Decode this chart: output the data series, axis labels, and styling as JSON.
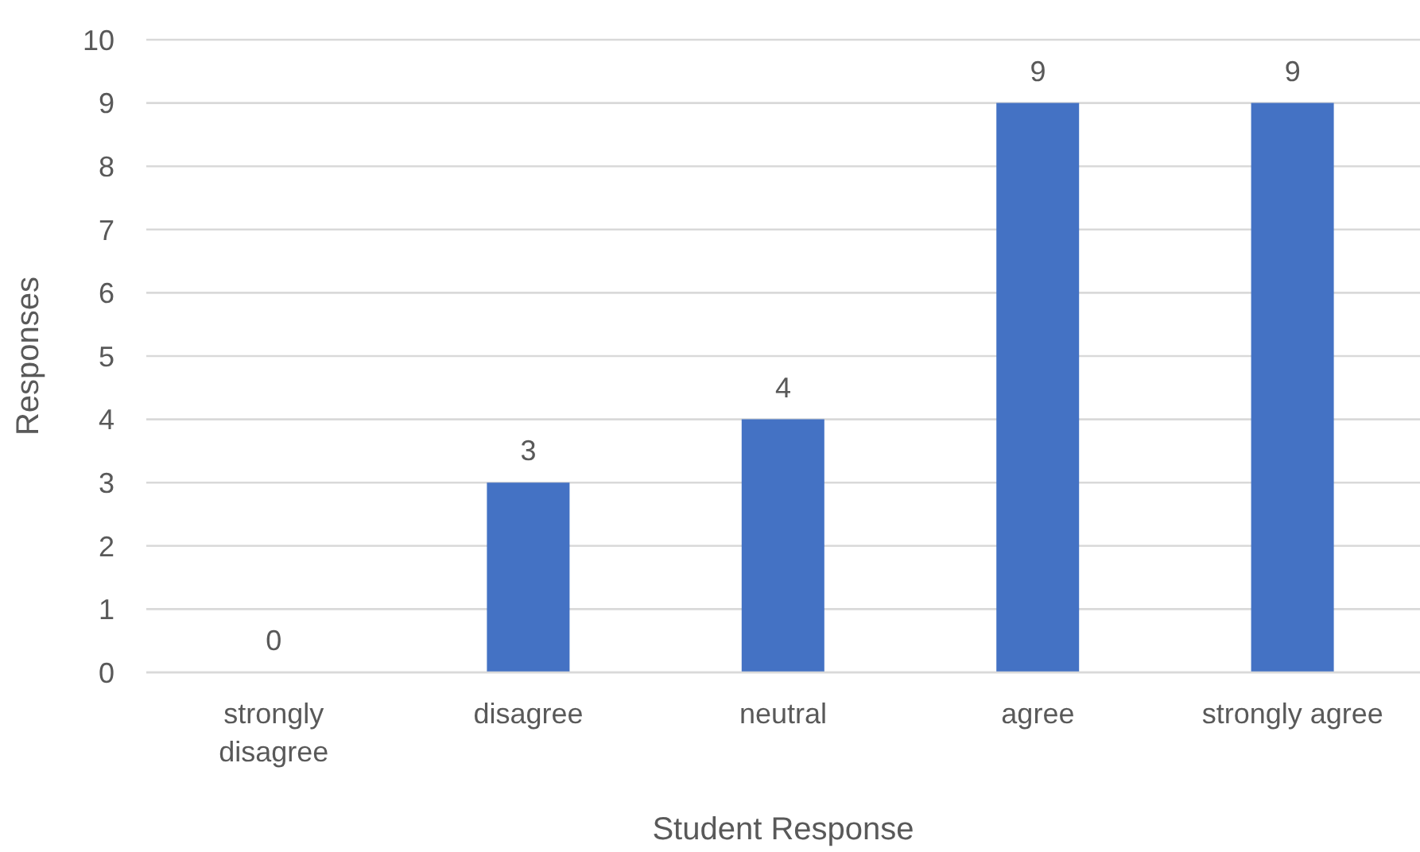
{
  "chart_data": {
    "type": "bar",
    "xlabel": "Student Response",
    "ylabel": "Responses",
    "categories": [
      "strongly disagree",
      "disagree",
      "neutral",
      "agree",
      "strongly agree"
    ],
    "values": [
      0,
      3,
      4,
      9,
      9
    ],
    "color": "#4472c4",
    "ylim": [
      0,
      10
    ],
    "yticks": [
      0,
      1,
      2,
      3,
      4,
      5,
      6,
      7,
      8,
      9,
      10
    ],
    "grid": "y",
    "data_labels": true,
    "legend": false
  }
}
